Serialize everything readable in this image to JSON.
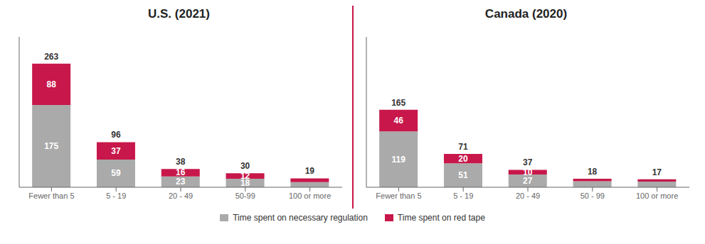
{
  "chart_data": [
    {
      "type": "bar",
      "title": "U.S. (2021)",
      "stacked": true,
      "tick_labels": "x",
      "grid": false,
      "legend": "bottom",
      "categories": [
        "Fewer than 5",
        "5 - 19",
        "20 - 49",
        "50-99",
        "100 or more"
      ],
      "ylim": [
        0,
        320
      ],
      "series": [
        {
          "name": "Time spent on necessary regulation",
          "color": "#aaaaaa",
          "values": [
            175,
            59,
            23,
            18,
            11
          ],
          "value_labels": [
            "175",
            "59",
            "23",
            "18",
            null
          ]
        },
        {
          "name": "Time spent on red tape",
          "color": "#c8174a",
          "values": [
            88,
            37,
            16,
            12,
            8
          ],
          "value_labels": [
            "88",
            "37",
            "16",
            "12",
            null
          ]
        }
      ],
      "totals": [
        263,
        96,
        38,
        30,
        19
      ]
    },
    {
      "type": "bar",
      "title": "Canada (2020)",
      "stacked": true,
      "tick_labels": "x",
      "grid": false,
      "legend": "bottom",
      "categories": [
        "Fewer than 5",
        "5 - 19",
        "20 - 49",
        "50 - 99",
        "100 or more"
      ],
      "ylim": [
        0,
        320
      ],
      "series": [
        {
          "name": "Time spent on necessary regulation",
          "color": "#aaaaaa",
          "values": [
            119,
            51,
            27,
            13,
            12
          ],
          "value_labels": [
            "119",
            "51",
            "27",
            null,
            null
          ]
        },
        {
          "name": "Time spent on red tape",
          "color": "#c8174a",
          "values": [
            46,
            20,
            10,
            5,
            5
          ],
          "value_labels": [
            "46",
            "20",
            "10",
            null,
            null
          ]
        }
      ],
      "totals": [
        165,
        71,
        37,
        18,
        17
      ]
    }
  ]
}
